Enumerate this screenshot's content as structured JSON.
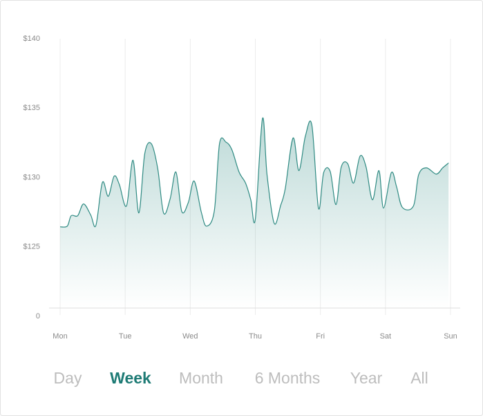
{
  "chart_data": {
    "type": "area",
    "color": "#2e8a82",
    "x": [
      0,
      0.11,
      0.17,
      0.27,
      0.36,
      0.47,
      0.55,
      0.65,
      0.74,
      0.83,
      0.91,
      1.02,
      1.12,
      1.21,
      1.3,
      1.4,
      1.5,
      1.59,
      1.69,
      1.78,
      1.87,
      1.97,
      2.06,
      2.17,
      2.25,
      2.37,
      2.45,
      2.55,
      2.64,
      2.75,
      2.85,
      2.93,
      3.0,
      3.11,
      3.18,
      3.29,
      3.39,
      3.46,
      3.58,
      3.67,
      3.77,
      3.87,
      3.97,
      4.05,
      4.15,
      4.24,
      4.32,
      4.42,
      4.51,
      4.61,
      4.7,
      4.8,
      4.9,
      4.97,
      5.09,
      5.17,
      5.26,
      5.43,
      5.51,
      5.63,
      5.78,
      5.88,
      5.97
    ],
    "values": [
      126.45,
      126.5,
      127.25,
      127.25,
      128.1,
      127.3,
      126.55,
      129.65,
      128.65,
      130.1,
      129.5,
      127.95,
      131.25,
      127.45,
      131.7,
      132.45,
      130.65,
      127.45,
      128.45,
      130.4,
      127.55,
      128.2,
      129.75,
      127.5,
      126.5,
      127.6,
      132.45,
      132.55,
      132,
      130.4,
      129.6,
      128.4,
      127,
      134.25,
      130.2,
      126.7,
      128,
      129.2,
      132.85,
      130.5,
      133,
      133.75,
      127.8,
      130.35,
      130.45,
      128.05,
      130.75,
      131,
      129.6,
      131.55,
      130.8,
      128.4,
      130.5,
      127.8,
      130.35,
      129.35,
      127.85,
      127.95,
      130.2,
      130.7,
      130.25,
      130.7,
      131.05
    ],
    "xlim": [
      0,
      6
    ],
    "xticks": [
      {
        "value": 0,
        "label": "Mon"
      },
      {
        "value": 1,
        "label": "Tue"
      },
      {
        "value": 2,
        "label": "Wed"
      },
      {
        "value": 3,
        "label": "Thu"
      },
      {
        "value": 4,
        "label": "Fri"
      },
      {
        "value": 5,
        "label": "Sat"
      },
      {
        "value": 6,
        "label": "Sun"
      }
    ],
    "ylim": [
      120,
      140
    ],
    "axis_break": [
      0,
      120
    ],
    "yticks": [
      {
        "value": 0,
        "label": "0"
      },
      {
        "value": 125,
        "label": "$125"
      },
      {
        "value": 130,
        "label": "$130"
      },
      {
        "value": 135,
        "label": "$135"
      },
      {
        "value": 140,
        "label": "$140"
      }
    ],
    "grid": true
  },
  "tabs": [
    "Day",
    "Week",
    "Month",
    "6 Months",
    "Year",
    "All"
  ],
  "selected_tab": 1
}
